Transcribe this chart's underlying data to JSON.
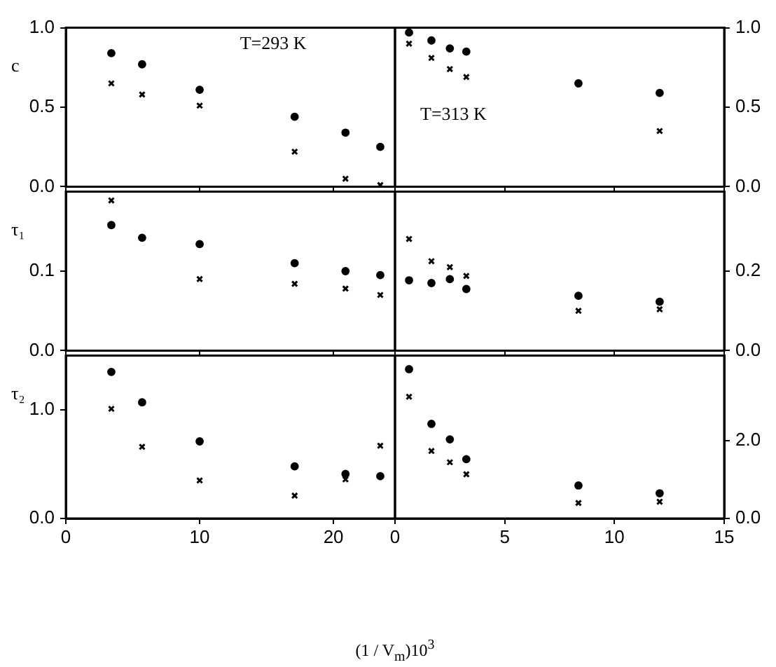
{
  "chart_data": [
    {
      "type": "scatter",
      "ylabel": "c",
      "annotations": [
        "T=293 K"
      ],
      "x": [
        3.4,
        5.7,
        10,
        17.1,
        20.9,
        23.5
      ],
      "xlim": [
        0,
        24.6
      ],
      "xticks": [
        0,
        10,
        20
      ],
      "ylim": [
        0,
        1
      ],
      "yticks": [
        {
          "value": 0,
          "label": "0.0"
        },
        0.5,
        {
          "value": 1,
          "label": "1.0"
        }
      ],
      "tick_labels": "y",
      "series": [
        {
          "color": "#000000",
          "marker": "circle",
          "values": [
            0.84,
            0.77,
            0.61,
            0.44,
            0.34,
            0.25
          ]
        },
        {
          "color": "#000000",
          "marker": "cross",
          "values": [
            0.65,
            0.58,
            0.51,
            0.22,
            0.05,
            0.01
          ]
        }
      ]
    },
    {
      "type": "scatter",
      "annotations": [
        "T=313 K"
      ],
      "x": [
        0.64,
        1.66,
        2.5,
        3.25,
        8.36,
        12.06
      ],
      "xlim": [
        0,
        15
      ],
      "xticks": [
        0,
        5,
        10,
        15
      ],
      "ylim": [
        0,
        1
      ],
      "yticks": [
        {
          "value": 0,
          "label": "0.0"
        },
        0.5,
        {
          "value": 1,
          "label": "1.0"
        }
      ],
      "tick_labels": "y",
      "series": [
        {
          "color": "#000000",
          "marker": "circle",
          "values": [
            0.97,
            0.92,
            0.87,
            0.85,
            0.65,
            0.59
          ]
        },
        {
          "color": "#000000",
          "marker": "cross",
          "values": [
            0.9,
            0.81,
            0.74,
            0.69,
            null,
            0.35
          ]
        }
      ]
    },
    {
      "type": "scatter",
      "ylabel": "τ₁",
      "x": [
        3.4,
        5.7,
        10,
        17.1,
        20.9,
        23.5
      ],
      "xlim": [
        0,
        24.6
      ],
      "xticks": [
        0,
        10,
        20
      ],
      "ylim": [
        0,
        0.2
      ],
      "yticks": [
        {
          "value": 0,
          "label": "0.0"
        },
        0.1
      ],
      "tick_labels": "y",
      "series": [
        {
          "color": "#000000",
          "marker": "circle",
          "values": [
            0.158,
            0.142,
            0.134,
            0.11,
            0.1,
            0.095
          ]
        },
        {
          "color": "#000000",
          "marker": "cross",
          "values": [
            0.189,
            null,
            0.09,
            0.084,
            0.078,
            0.07
          ]
        }
      ]
    },
    {
      "type": "scatter",
      "x": [
        0.64,
        1.66,
        2.5,
        3.25,
        8.36,
        12.06
      ],
      "xlim": [
        0,
        15
      ],
      "xticks": [
        0,
        5,
        10,
        15
      ],
      "ylim": [
        0,
        0.4
      ],
      "yticks": [
        {
          "value": 0,
          "label": "0.0"
        },
        0.2
      ],
      "tick_labels": "y",
      "series": [
        {
          "color": "#000000",
          "marker": "circle",
          "values": [
            0.177,
            0.17,
            0.18,
            0.155,
            0.138,
            0.123
          ]
        },
        {
          "color": "#000000",
          "marker": "cross",
          "values": [
            0.281,
            0.225,
            0.21,
            0.188,
            0.1,
            0.104
          ]
        }
      ]
    },
    {
      "type": "scatter",
      "ylabel": "τ₂",
      "xlabel": "(1 / V$_{m}$)10$^{3}$",
      "x": [
        3.4,
        5.7,
        10,
        17.1,
        20.9,
        23.5
      ],
      "xlim": [
        0,
        24.6
      ],
      "xticks": [
        0,
        10,
        20
      ],
      "ylim": [
        0,
        1.5
      ],
      "yticks": [
        {
          "value": 0,
          "label": "0.0"
        },
        {
          "value": 1,
          "label": "1.0"
        }
      ],
      "series": [
        {
          "color": "#000000",
          "marker": "circle",
          "values": [
            1.35,
            1.07,
            0.71,
            0.48,
            0.41,
            0.39
          ]
        },
        {
          "color": "#000000",
          "marker": "cross",
          "values": [
            1.01,
            0.66,
            0.35,
            0.21,
            0.36,
            0.67
          ]
        }
      ]
    },
    {
      "type": "scatter",
      "x": [
        0.64,
        1.66,
        2.5,
        3.25,
        8.36,
        12.06
      ],
      "xlim": [
        0,
        15
      ],
      "xticks": [
        0,
        5,
        10,
        15
      ],
      "ylim": [
        0,
        4.2
      ],
      "yticks": [
        {
          "value": 0,
          "label": "0.0"
        },
        {
          "value": 2,
          "label": "2.0"
        }
      ],
      "series": [
        {
          "color": "#000000",
          "marker": "circle",
          "values": [
            3.85,
            2.44,
            2.04,
            1.53,
            0.85,
            0.65
          ]
        },
        {
          "color": "#000000",
          "marker": "cross",
          "values": [
            3.14,
            1.74,
            1.45,
            1.14,
            0.4,
            0.43
          ]
        }
      ]
    }
  ]
}
